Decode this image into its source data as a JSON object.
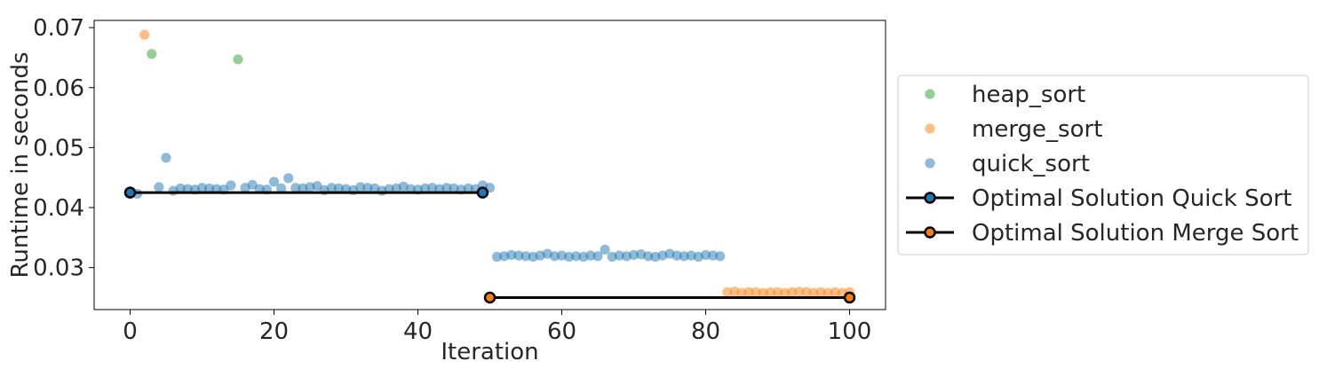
{
  "chart_data": {
    "type": "scatter",
    "title": "",
    "xlabel": "Iteration",
    "ylabel": "Runtime in seconds",
    "xlim": [
      -5,
      105
    ],
    "ylim": [
      0.023,
      0.0712
    ],
    "xticks": [
      0,
      20,
      40,
      60,
      80,
      100
    ],
    "yticks": [
      0.03,
      0.04,
      0.05,
      0.06,
      0.07
    ],
    "ytick_labels": [
      "0.03",
      "0.04",
      "0.05",
      "0.06",
      "0.07"
    ],
    "grid": false,
    "legend_placement": "right, outside plot",
    "series": [
      {
        "name": "heap_sort",
        "kind": "scatter",
        "color": "#2ca02c",
        "x": [
          3,
          15
        ],
        "y": [
          0.0656,
          0.0647
        ]
      },
      {
        "name": "merge_sort",
        "kind": "scatter",
        "color": "#ff7f0e",
        "x": [
          2,
          83,
          84,
          85,
          86,
          87,
          88,
          89,
          90,
          91,
          92,
          93,
          94,
          95,
          96,
          97,
          98,
          99,
          100
        ],
        "y": [
          0.0688,
          0.0259,
          0.026,
          0.0258,
          0.0259,
          0.0259,
          0.0258,
          0.0259,
          0.0259,
          0.0258,
          0.0259,
          0.026,
          0.0259,
          0.0258,
          0.0259,
          0.0258,
          0.0259,
          0.0258,
          0.0259
        ]
      },
      {
        "name": "quick_sort",
        "kind": "scatter",
        "color": "#1f77b4",
        "x": [
          0,
          1,
          4,
          5,
          6,
          7,
          8,
          9,
          10,
          11,
          12,
          13,
          14,
          16,
          17,
          18,
          19,
          20,
          21,
          22,
          23,
          24,
          25,
          26,
          27,
          28,
          29,
          30,
          31,
          32,
          33,
          34,
          35,
          36,
          37,
          38,
          39,
          40,
          41,
          42,
          43,
          44,
          45,
          46,
          47,
          48,
          49,
          50,
          51,
          52,
          53,
          54,
          55,
          56,
          57,
          58,
          59,
          60,
          61,
          62,
          63,
          64,
          65,
          66,
          67,
          68,
          69,
          70,
          71,
          72,
          73,
          74,
          75,
          76,
          77,
          78,
          79,
          80,
          81,
          82
        ],
        "y": [
          0.0425,
          0.0423,
          0.0434,
          0.0483,
          0.0428,
          0.0432,
          0.0431,
          0.043,
          0.0433,
          0.0432,
          0.0431,
          0.043,
          0.0437,
          0.0433,
          0.0438,
          0.0431,
          0.043,
          0.0443,
          0.0432,
          0.0449,
          0.0433,
          0.0432,
          0.0434,
          0.0436,
          0.0429,
          0.0433,
          0.0432,
          0.0431,
          0.0429,
          0.0434,
          0.0433,
          0.0432,
          0.0428,
          0.0431,
          0.0432,
          0.0435,
          0.0431,
          0.043,
          0.0432,
          0.0433,
          0.0431,
          0.0433,
          0.0432,
          0.043,
          0.0432,
          0.0431,
          0.0437,
          0.0433,
          0.0318,
          0.0319,
          0.0321,
          0.032,
          0.0319,
          0.0318,
          0.032,
          0.0323,
          0.0319,
          0.032,
          0.0318,
          0.0319,
          0.0318,
          0.032,
          0.0319,
          0.033,
          0.0318,
          0.032,
          0.0319,
          0.0321,
          0.0322,
          0.0319,
          0.0318,
          0.032,
          0.0323,
          0.032,
          0.0319,
          0.032,
          0.0318,
          0.0321,
          0.032,
          0.0319
        ]
      },
      {
        "name": "Optimal Solution Quick Sort",
        "kind": "line",
        "color": "#000000",
        "marker_fill": "#1f77b4",
        "x": [
          0,
          49
        ],
        "y": [
          0.0425,
          0.0425
        ]
      },
      {
        "name": "Optimal Solution Merge Sort",
        "kind": "line",
        "color": "#000000",
        "marker_fill": "#ff7f0e",
        "x": [
          50,
          100
        ],
        "y": [
          0.025,
          0.025
        ]
      }
    ]
  }
}
